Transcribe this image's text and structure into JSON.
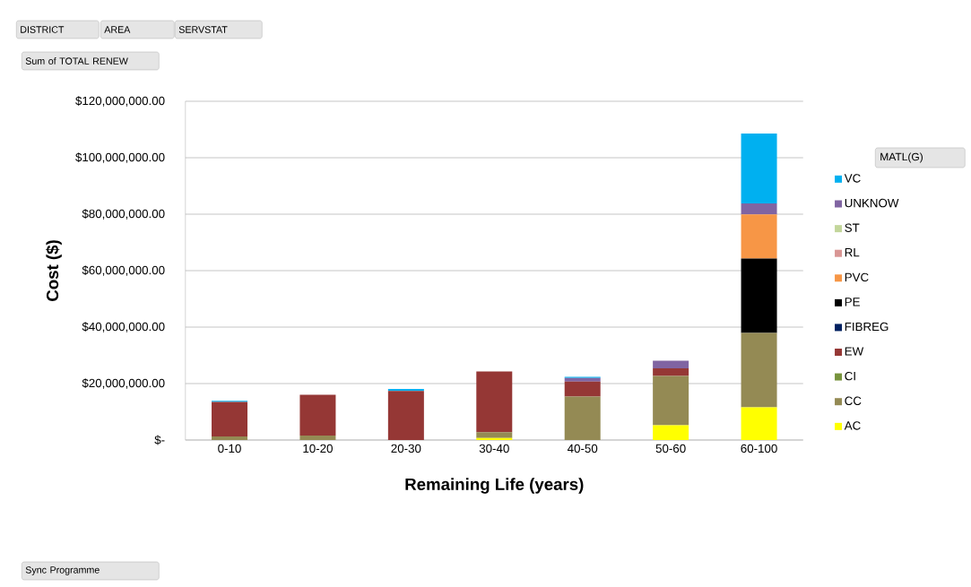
{
  "chart_data": {
    "type": "bar",
    "stacked": true,
    "xlabel": "Remaining Life (years)",
    "ylabel": "Cost ($)",
    "legend_title": "MATL(G)",
    "legend": "right",
    "grid": "y",
    "categories": [
      "0-10",
      "10-20",
      "20-30",
      "30-40",
      "40-50",
      "50-60",
      "60-100"
    ],
    "ylim": [
      0,
      120000000
    ],
    "yticks": [
      {
        "value": 0,
        "label": "$-"
      },
      {
        "value": 20000000,
        "label": "$20,000,000.00"
      },
      {
        "value": 40000000,
        "label": "$40,000,000.00"
      },
      {
        "value": 60000000,
        "label": "$60,000,000.00"
      },
      {
        "value": 80000000,
        "label": "$80,000,000.00"
      },
      {
        "value": 100000000,
        "label": "$100,000,000.00"
      },
      {
        "value": 120000000,
        "label": "$120,000,000.00"
      }
    ],
    "series": [
      {
        "name": "AC",
        "color": "#ffff00",
        "values": [
          null,
          null,
          null,
          700000,
          null,
          5200000,
          11600000
        ]
      },
      {
        "name": "CC",
        "color": "#948a54",
        "values": [
          1300000,
          1600000,
          null,
          2100000,
          15400000,
          17500000,
          26300000
        ]
      },
      {
        "name": "CI",
        "color": "#77933c",
        "values": [
          null,
          null,
          null,
          null,
          null,
          null,
          null
        ]
      },
      {
        "name": "EW",
        "color": "#953735",
        "values": [
          12200000,
          14400000,
          17400000,
          21500000,
          5300000,
          2700000,
          null
        ]
      },
      {
        "name": "FIBREG",
        "color": "#002060",
        "values": [
          null,
          null,
          null,
          null,
          null,
          null,
          null
        ]
      },
      {
        "name": "PE",
        "color": "#000000",
        "values": [
          null,
          null,
          null,
          null,
          null,
          null,
          26400000
        ]
      },
      {
        "name": "PVC",
        "color": "#f79646",
        "values": [
          null,
          null,
          null,
          null,
          null,
          null,
          15600000
        ]
      },
      {
        "name": "RL",
        "color": "#d99694",
        "values": [
          null,
          null,
          null,
          null,
          null,
          null,
          null
        ]
      },
      {
        "name": "ST",
        "color": "#c3d69b",
        "values": [
          null,
          null,
          null,
          null,
          null,
          null,
          null
        ]
      },
      {
        "name": "UNKNOW",
        "color": "#8064a2",
        "values": [
          null,
          null,
          null,
          null,
          1300000,
          2700000,
          3900000
        ]
      },
      {
        "name": "VC",
        "color": "#00b0f0",
        "values": [
          400000,
          null,
          700000,
          null,
          400000,
          null,
          24800000
        ]
      }
    ],
    "annotations": [
      "DISTRICT",
      "AREA",
      "SERVSTAT",
      "Sum of TOTAL RENEW",
      "Sync Programme"
    ]
  }
}
